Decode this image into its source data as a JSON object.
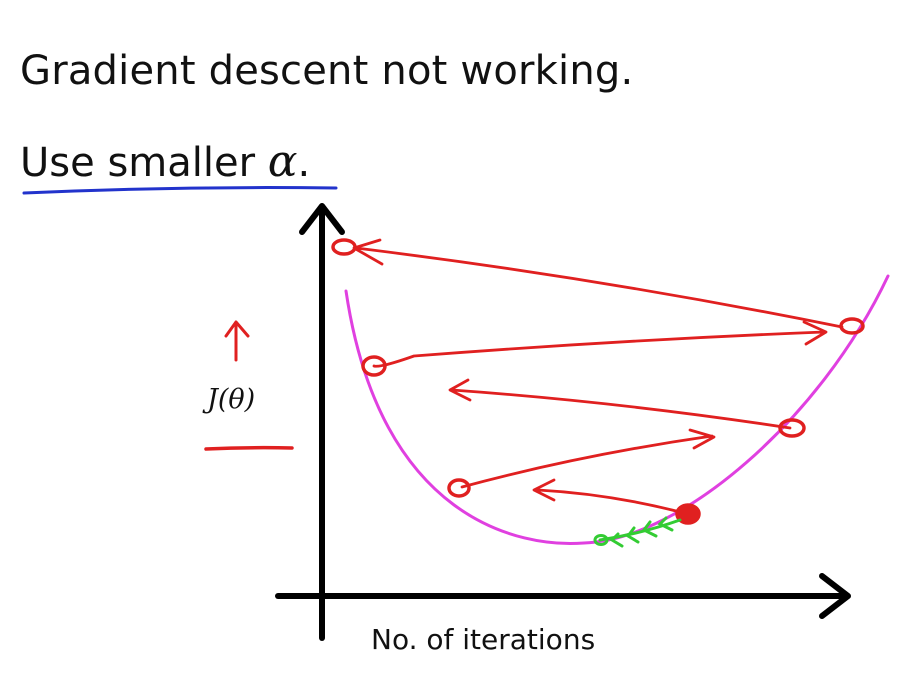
{
  "slide": {
    "title": "Gradient descent not working.",
    "subtitle_text": "Use smaller ",
    "subtitle_symbol": "α",
    "subtitle_end": ".",
    "y_axis_label": "J(θ)",
    "x_axis_label": "No. of iterations"
  },
  "colors": {
    "text": "#111111",
    "axis": "#000000",
    "curve": "#e040e0",
    "steps": "#e02020",
    "underline_blue": "#2233cc",
    "minimum_path": "#33cc33"
  }
}
